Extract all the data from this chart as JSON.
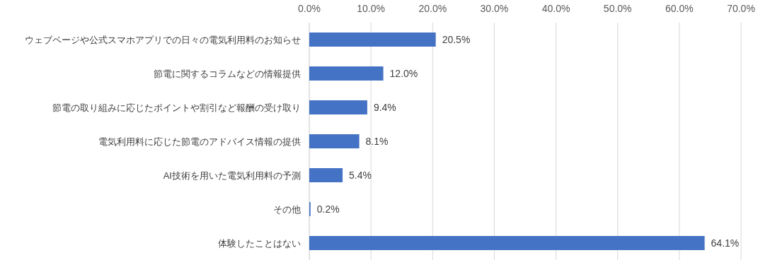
{
  "chart_data": {
    "type": "bar",
    "orientation": "horizontal",
    "categories": [
      "ウェブページや公式スマホアプリでの日々の電気利用料のお知らせ",
      "節電に関するコラムなどの情報提供",
      "節電の取り組みに応じたポイントや割引など報酬の受け取り",
      "電気利用料に応じた節電のアドバイス情報の提供",
      "AI技術を用いた電気利用料の予測",
      "その他",
      "体験したことはない"
    ],
    "values": [
      20.5,
      12.0,
      9.4,
      8.1,
      5.4,
      0.2,
      64.1
    ],
    "value_labels": [
      "20.5%",
      "12.0%",
      "9.4%",
      "8.1%",
      "5.4%",
      "0.2%",
      "64.1%"
    ],
    "color": "#4472c4",
    "xlim": [
      0,
      70
    ],
    "xticks": [
      {
        "value": 0,
        "label": "0.0%"
      },
      {
        "value": 10,
        "label": "10.0%"
      },
      {
        "value": 20,
        "label": "20.0%"
      },
      {
        "value": 30,
        "label": "30.0%"
      },
      {
        "value": 40,
        "label": "40.0%"
      },
      {
        "value": 50,
        "label": "50.0%"
      },
      {
        "value": 60,
        "label": "60.0%"
      },
      {
        "value": 70,
        "label": "70.0%"
      }
    ],
    "grid": "x"
  }
}
